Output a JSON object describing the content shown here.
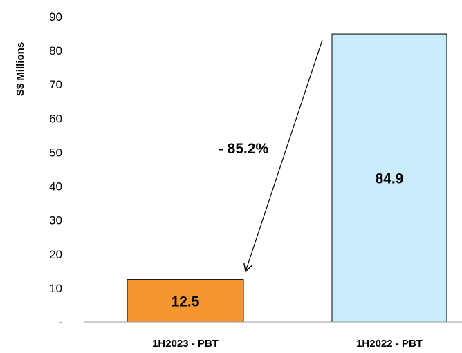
{
  "chart_data": {
    "type": "bar",
    "categories": [
      "1H2023 - PBT",
      "1H2022 - PBT"
    ],
    "values": [
      12.5,
      84.9
    ],
    "data_labels": [
      "12.5",
      "84.9"
    ],
    "bar_colors": [
      "#f7962f",
      "#c9ecfb"
    ],
    "ylabel": "S$ Millions",
    "ylim": [
      0,
      90
    ],
    "yticks": [
      "-",
      "10",
      "20",
      "30",
      "40",
      "50",
      "60",
      "70",
      "80",
      "90"
    ],
    "annotation": "- 85.2%",
    "grid": false,
    "legend": "none"
  }
}
